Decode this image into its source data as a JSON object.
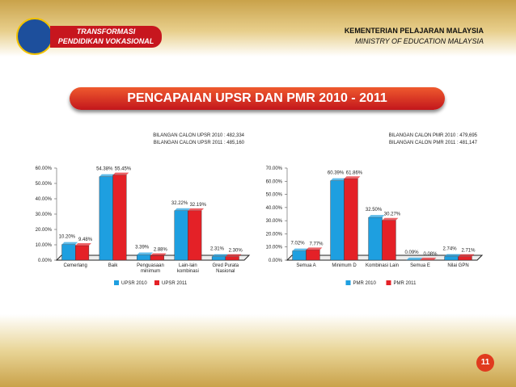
{
  "slide": {
    "logo_line1": "TRANSFORMASI",
    "logo_line2": "PENDIDIKAN VOKASIONAL",
    "ministry_ms": "KEMENTERIAN PELAJARAN MALAYSIA",
    "ministry_en": "MINISTRY OF EDUCATION MALAYSIA",
    "title": "PENCAPAIAN UPSR DAN PMR 2010 - 2011",
    "page_number": "11"
  },
  "chart_data": [
    {
      "type": "bar",
      "subtitle": [
        "BILANGAN CALON UPSR 2010 : 482,334",
        "BILANGAN CALON UPSR 2011 : 485,160"
      ],
      "categories": [
        "Cemerlang",
        "Baik",
        "Penguasaan minimum",
        "Lain-lain kombinasi",
        "Gred Purata Nasional"
      ],
      "series": [
        {
          "name": "UPSR 2010",
          "color": "#1e9fe0",
          "values": [
            10.2,
            54.38,
            3.39,
            32.22,
            2.31
          ],
          "value_labels": [
            "10.20%",
            "54.38%",
            "3.39%",
            "32.22%",
            "2.31%"
          ]
        },
        {
          "name": "UPSR 2011",
          "color": "#e42127",
          "values": [
            9.48,
            55.45,
            2.88,
            32.19,
            2.3
          ],
          "value_labels": [
            "9.48%",
            "55.45%",
            "2.88%",
            "32.19%",
            "2.30%"
          ]
        }
      ],
      "ylim": [
        0,
        60
      ],
      "yticks": [
        {
          "value": 0,
          "label": "0.00%"
        },
        {
          "value": 10,
          "label": "10.00%"
        },
        {
          "value": 20,
          "label": "20.00%"
        },
        {
          "value": 30,
          "label": "30.00%"
        },
        {
          "value": 40,
          "label": "40.00%"
        },
        {
          "value": 50,
          "label": "50.00%"
        },
        {
          "value": 60,
          "label": "60.00%"
        }
      ],
      "legend": "bottom"
    },
    {
      "type": "bar",
      "subtitle": [
        "BILANGAN CALON PMR 2010 : 479,695",
        "BILANGAN CALON PMR 2011 : 481,147"
      ],
      "categories": [
        "Semua A",
        "Minimum D",
        "Kombinasi Lain",
        "Semua E",
        "Nilai GPN"
      ],
      "series": [
        {
          "name": "PMR 2010",
          "color": "#1e9fe0",
          "values": [
            7.02,
            60.39,
            32.5,
            0.09,
            2.74
          ],
          "value_labels": [
            "7.02%",
            "60.39%",
            "32.50%",
            "0.09%",
            "2.74%"
          ]
        },
        {
          "name": "PMR 2011",
          "color": "#e42127",
          "values": [
            7.77,
            61.86,
            30.27,
            0.08,
            2.71
          ],
          "value_labels": [
            "7.77%",
            "61.86%",
            "30.27%",
            "0.08%",
            "2.71%"
          ]
        }
      ],
      "ylim": [
        0,
        70
      ],
      "yticks": [
        {
          "value": 0,
          "label": "0.00%"
        },
        {
          "value": 10,
          "label": "10.00%"
        },
        {
          "value": 20,
          "label": "20.00%"
        },
        {
          "value": 30,
          "label": "30.00%"
        },
        {
          "value": 40,
          "label": "40.00%"
        },
        {
          "value": 50,
          "label": "50.00%"
        },
        {
          "value": 60,
          "label": "60.00%"
        },
        {
          "value": 70,
          "label": "70.00%"
        }
      ],
      "legend": "bottom"
    }
  ]
}
